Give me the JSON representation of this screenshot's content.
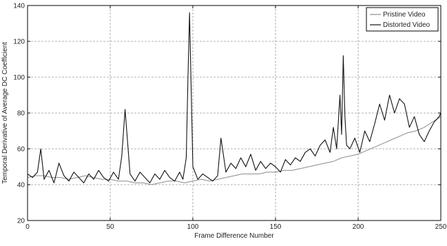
{
  "chart_data": {
    "type": "line",
    "xlabel": "Frame Difference Number",
    "ylabel": "Temporal Derivative of Average DC Coefficient",
    "xlim": [
      0,
      250
    ],
    "ylim": [
      20,
      140
    ],
    "xticks": [
      0,
      50,
      100,
      150,
      200,
      250
    ],
    "yticks": [
      20,
      40,
      60,
      80,
      100,
      120,
      140
    ],
    "grid": true,
    "legend_position": "top-right",
    "series": [
      {
        "name": "Pristine Video",
        "color": "#8a8a8a",
        "x": [
          0,
          5,
          10,
          15,
          20,
          25,
          30,
          35,
          40,
          45,
          50,
          55,
          60,
          65,
          70,
          75,
          80,
          85,
          90,
          95,
          100,
          105,
          110,
          115,
          120,
          125,
          130,
          135,
          140,
          145,
          150,
          155,
          160,
          165,
          170,
          175,
          180,
          185,
          190,
          195,
          200,
          205,
          210,
          215,
          220,
          225,
          230,
          235,
          240,
          245,
          250
        ],
        "values": [
          44,
          45,
          45,
          44,
          44,
          43,
          44,
          45,
          44,
          43,
          43,
          42,
          42,
          41,
          41,
          40,
          41,
          42,
          42,
          41,
          42,
          43,
          42,
          43,
          44,
          45,
          46,
          46,
          46,
          47,
          47,
          48,
          48,
          49,
          50,
          51,
          52,
          53,
          55,
          56,
          57,
          59,
          61,
          63,
          65,
          67,
          69,
          70,
          72,
          75,
          78
        ]
      },
      {
        "name": "Distorted Video",
        "color": "#111111",
        "x": [
          0,
          3,
          6,
          8,
          10,
          13,
          16,
          19,
          22,
          25,
          28,
          31,
          34,
          37,
          40,
          43,
          46,
          49,
          52,
          55,
          57,
          59,
          62,
          65,
          68,
          71,
          74,
          77,
          80,
          83,
          86,
          89,
          92,
          94,
          96,
          97,
          98,
          100,
          103,
          106,
          109,
          112,
          115,
          117,
          120,
          123,
          126,
          129,
          132,
          135,
          138,
          141,
          144,
          147,
          150,
          153,
          156,
          159,
          162,
          165,
          168,
          171,
          174,
          177,
          180,
          183,
          185,
          187,
          189,
          190,
          191,
          192,
          193,
          195,
          198,
          201,
          204,
          207,
          210,
          213,
          216,
          219,
          222,
          225,
          228,
          231,
          234,
          237,
          240,
          243,
          246,
          249,
          250
        ],
        "values": [
          46,
          44,
          47,
          60,
          43,
          48,
          41,
          52,
          45,
          42,
          47,
          44,
          41,
          46,
          43,
          48,
          44,
          42,
          47,
          43,
          56,
          82,
          46,
          42,
          47,
          44,
          41,
          46,
          43,
          48,
          44,
          42,
          47,
          43,
          55,
          98,
          136,
          50,
          43,
          46,
          44,
          42,
          45,
          66,
          47,
          52,
          49,
          55,
          50,
          57,
          48,
          53,
          49,
          52,
          50,
          47,
          54,
          51,
          55,
          53,
          58,
          60,
          56,
          62,
          65,
          58,
          72,
          60,
          90,
          68,
          112,
          78,
          62,
          60,
          66,
          58,
          70,
          64,
          74,
          85,
          76,
          90,
          80,
          88,
          85,
          72,
          78,
          68,
          64,
          70,
          75,
          78,
          80
        ]
      }
    ]
  }
}
